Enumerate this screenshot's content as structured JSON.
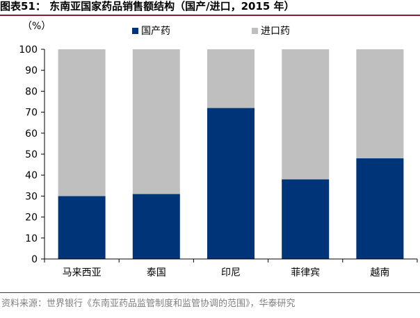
{
  "title": "图表51： 东南亚国家药品销售额结构（国产/进口，2015 年）",
  "source": "资料来源：世界银行《东南亚药品监管制度和监管协调的范围》，华泰研究",
  "chart_data": {
    "type": "bar",
    "stacked": true,
    "unit_label": "（%）",
    "categories": [
      "马来西亚",
      "泰国",
      "印尼",
      "菲律宾",
      "越南"
    ],
    "series": [
      {
        "name": "国产药",
        "color": "#003478",
        "values": [
          30,
          31,
          72,
          38,
          48
        ]
      },
      {
        "name": "进口药",
        "color": "#bfbfbf",
        "values": [
          70,
          69,
          28,
          62,
          52
        ]
      }
    ],
    "ylim": [
      0,
      100
    ],
    "yticks": [
      0,
      10,
      20,
      30,
      40,
      50,
      60,
      70,
      80,
      90,
      100
    ],
    "legend_position": "top",
    "grid": false
  }
}
